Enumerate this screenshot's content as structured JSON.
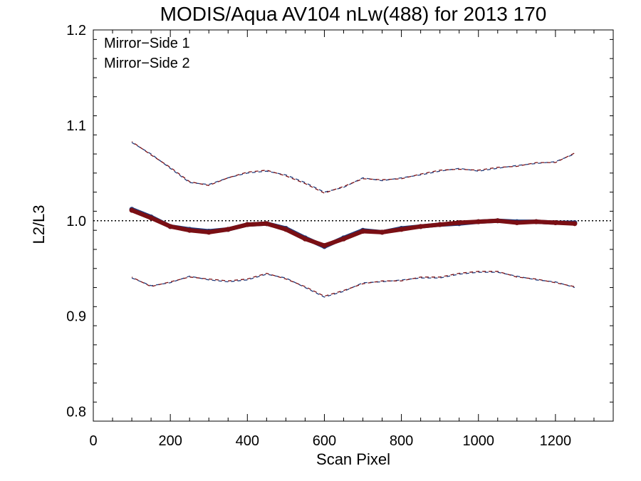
{
  "chart_data": {
    "type": "scatter",
    "title": "MODIS/Aqua AV104 nLw(488) for 2013 170",
    "xlabel": "Scan Pixel",
    "ylabel": "L2/L3",
    "xlim": [
      0,
      1350
    ],
    "ylim": [
      0.79,
      1.2
    ],
    "xticks": [
      0,
      200,
      400,
      600,
      800,
      1000,
      1200
    ],
    "xtick_labels": [
      "0",
      "200",
      "400",
      "600",
      "800",
      "1000",
      "1200"
    ],
    "yticks": [
      0.8,
      0.9,
      1.0,
      1.1,
      1.2
    ],
    "ytick_labels": [
      "0.8",
      "0.9",
      "1.0",
      "1.1",
      "1.2"
    ],
    "x_minor_step": 50,
    "y_minor_step": 0.02,
    "reference_line": 1.0,
    "grid": false,
    "legend_position": "top-left",
    "series": [
      {
        "name": "Mirror−Side 1",
        "color": "#1f3a7a",
        "x": [
          100,
          150,
          200,
          250,
          300,
          350,
          400,
          450,
          500,
          550,
          600,
          650,
          700,
          750,
          800,
          850,
          900,
          950,
          1000,
          1050,
          1100,
          1150,
          1200,
          1250
        ],
        "mean": [
          1.012,
          1.004,
          0.994,
          0.991,
          0.989,
          0.991,
          0.996,
          0.997,
          0.992,
          0.982,
          0.973,
          0.982,
          0.99,
          0.988,
          0.992,
          0.994,
          0.996,
          0.997,
          0.999,
          1.0,
          0.999,
          0.999,
          0.998,
          0.998
        ],
        "upper": [
          1.082,
          1.07,
          1.055,
          1.04,
          1.038,
          1.045,
          1.05,
          1.052,
          1.048,
          1.04,
          1.03,
          1.035,
          1.045,
          1.042,
          1.045,
          1.048,
          1.052,
          1.055,
          1.052,
          1.055,
          1.058,
          1.06,
          1.062,
          1.07
        ],
        "lower": [
          0.94,
          0.932,
          0.935,
          0.942,
          0.938,
          0.936,
          0.938,
          0.944,
          0.94,
          0.93,
          0.92,
          0.926,
          0.935,
          0.936,
          0.938,
          0.94,
          0.94,
          0.944,
          0.946,
          0.946,
          0.942,
          0.938,
          0.936,
          0.93
        ]
      },
      {
        "name": "Mirror−Side 2",
        "color": "#7a0f14",
        "x": [
          100,
          150,
          200,
          250,
          300,
          350,
          400,
          450,
          500,
          550,
          600,
          650,
          700,
          750,
          800,
          850,
          900,
          950,
          1000,
          1050,
          1100,
          1150,
          1200,
          1250
        ],
        "mean": [
          1.011,
          1.003,
          0.994,
          0.99,
          0.988,
          0.991,
          0.996,
          0.997,
          0.991,
          0.981,
          0.974,
          0.981,
          0.989,
          0.988,
          0.991,
          0.994,
          0.996,
          0.998,
          0.999,
          1.0,
          0.998,
          0.999,
          0.998,
          0.997
        ],
        "upper": [
          1.083,
          1.069,
          1.056,
          1.041,
          1.037,
          1.045,
          1.051,
          1.053,
          1.047,
          1.039,
          1.029,
          1.036,
          1.044,
          1.043,
          1.044,
          1.049,
          1.053,
          1.054,
          1.053,
          1.056,
          1.057,
          1.061,
          1.061,
          1.071
        ],
        "lower": [
          0.941,
          0.931,
          0.936,
          0.941,
          0.939,
          0.937,
          0.939,
          0.945,
          0.939,
          0.931,
          0.921,
          0.927,
          0.934,
          0.937,
          0.937,
          0.941,
          0.941,
          0.945,
          0.947,
          0.947,
          0.941,
          0.939,
          0.935,
          0.931
        ]
      }
    ]
  }
}
